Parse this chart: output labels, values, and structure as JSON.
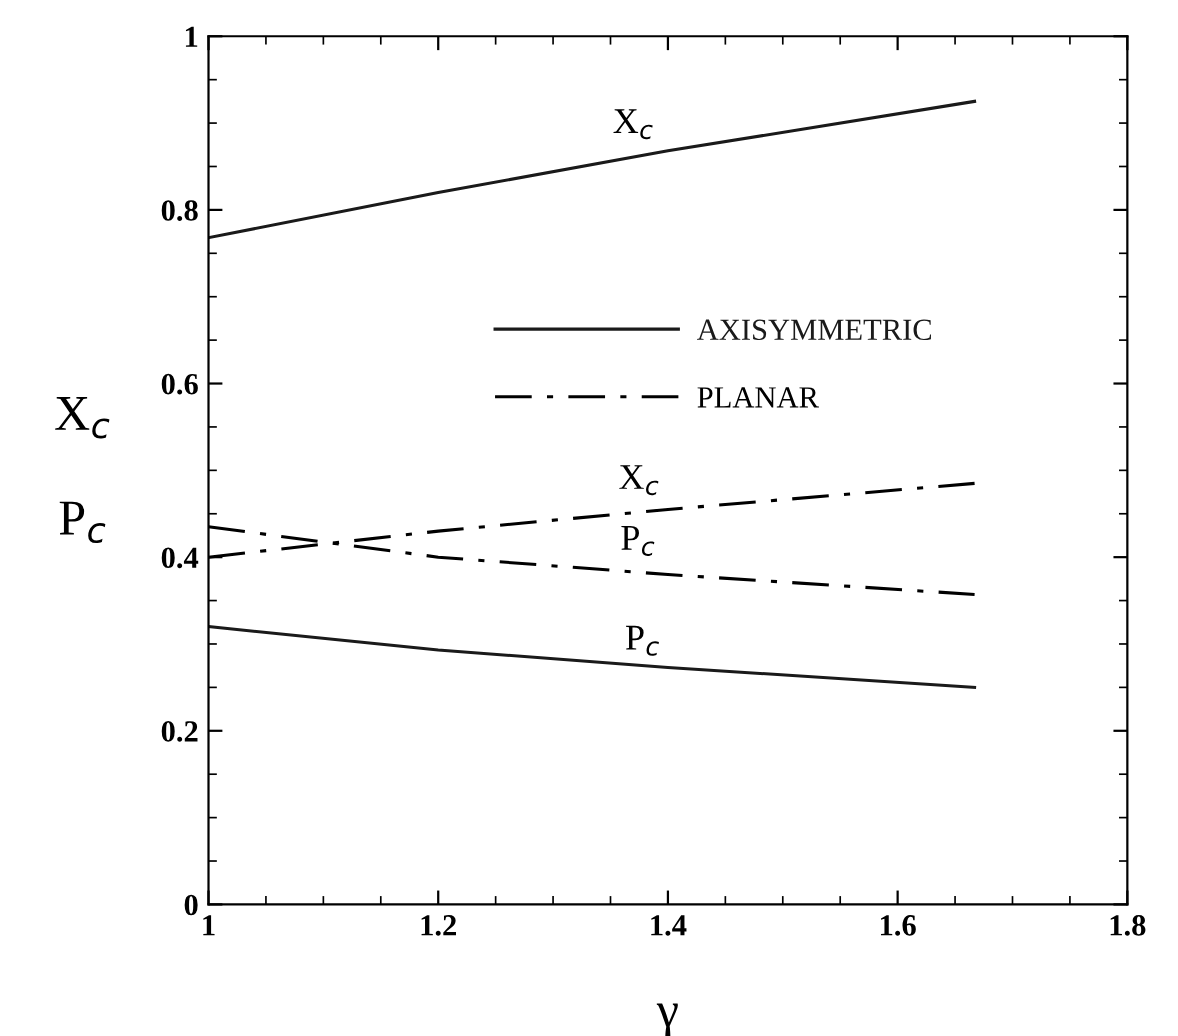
{
  "chart_data": {
    "type": "line",
    "xlabel": "γ",
    "ylabel": "X$_{c}$ P$_{c}$",
    "x": [
      1,
      1.2,
      1.4,
      1.667
    ],
    "series": [
      {
        "name": "AXISYMMETRIC",
        "color": "#1a1a1a",
        "line_style": "solid",
        "values": [
          0.768,
          0.82,
          0.868,
          0.925
        ]
      },
      {
        "color": "#1a1a1a",
        "line_style": "solid",
        "values": [
          0.32,
          0.293,
          0.273,
          0.25
        ]
      },
      {
        "name": "PLANAR",
        "color": "#000000",
        "line_style": "dashdot",
        "values": [
          0.4,
          0.43,
          0.455,
          0.485
        ]
      },
      {
        "color": "#000000",
        "line_style": "dashdot",
        "values": [
          0.435,
          0.4,
          0.38,
          0.357
        ]
      }
    ],
    "annotations": [
      {
        "text": "X$_{c}$",
        "x": 1.37,
        "y": 0.87
      },
      {
        "text": "X$_{c}$",
        "x": 1.375,
        "y": 0.46
      },
      {
        "text": "P$_{c}$",
        "x": 1.374,
        "y": 0.39
      },
      {
        "text": "P$_{c}$",
        "x": 1.378,
        "y": 0.275
      }
    ],
    "xlim": [
      1,
      1.8
    ],
    "ylim": [
      0,
      1
    ],
    "xticks": [
      1,
      1.2,
      1.4,
      1.6,
      1.8
    ],
    "yticks": [
      0,
      0.2,
      0.4,
      0.6,
      0.8,
      1
    ],
    "legend": "center",
    "grid": false,
    "marker": "none"
  }
}
